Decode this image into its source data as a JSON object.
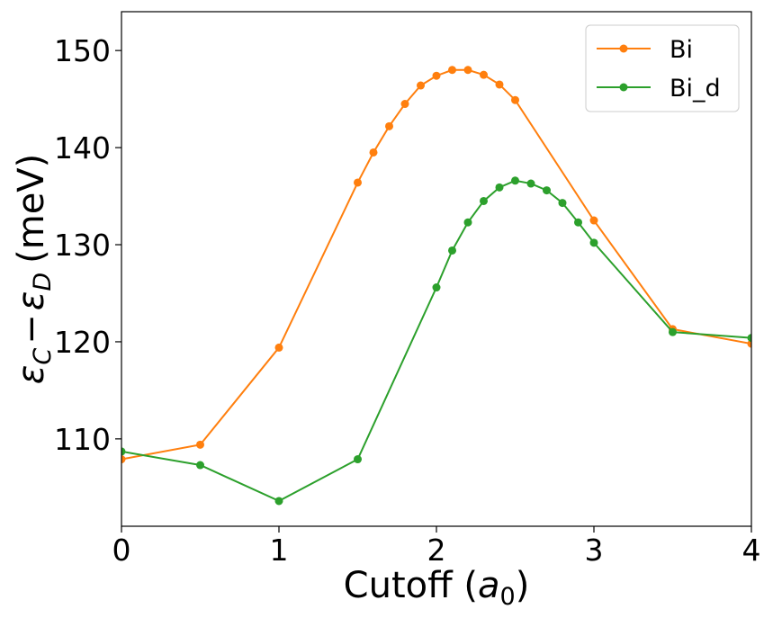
{
  "chart_data": {
    "type": "line",
    "xlabel": {
      "text": "Cutoff (",
      "math": "a",
      "sub": "0",
      "close": ")"
    },
    "ylabel": {
      "text": "(meV)",
      "eps1": "ε",
      "sub1": "C",
      "minus": "−",
      "eps2": "ε",
      "sub2": "D"
    },
    "xlim": [
      0,
      4
    ],
    "ylim": [
      101,
      154
    ],
    "xticks": [
      0,
      1,
      2,
      3,
      4
    ],
    "yticks": [
      110,
      120,
      130,
      140,
      150
    ],
    "grid": false,
    "legend_position": "top-right",
    "series": [
      {
        "name": "Bi",
        "color": "#ff7f0e",
        "x": [
          0,
          0.5,
          1.0,
          1.5,
          1.6,
          1.7,
          1.8,
          1.9,
          2.0,
          2.1,
          2.2,
          2.3,
          2.4,
          2.5,
          3.0,
          3.5,
          4.0
        ],
        "y": [
          107.9,
          109.4,
          119.4,
          136.4,
          139.5,
          142.2,
          144.5,
          146.4,
          147.4,
          148.0,
          148.0,
          147.5,
          146.5,
          144.9,
          132.5,
          121.3,
          119.8
        ]
      },
      {
        "name": "Bi_d",
        "color": "#2ca02c",
        "x": [
          0,
          0.5,
          1.0,
          1.5,
          2.0,
          2.1,
          2.2,
          2.3,
          2.4,
          2.5,
          2.6,
          2.7,
          2.8,
          2.9,
          3.0,
          3.5,
          4.0
        ],
        "y": [
          108.7,
          107.3,
          103.6,
          107.9,
          125.6,
          129.4,
          132.3,
          134.5,
          135.9,
          136.6,
          136.3,
          135.6,
          134.3,
          132.3,
          130.2,
          121.0,
          120.4
        ]
      }
    ]
  }
}
